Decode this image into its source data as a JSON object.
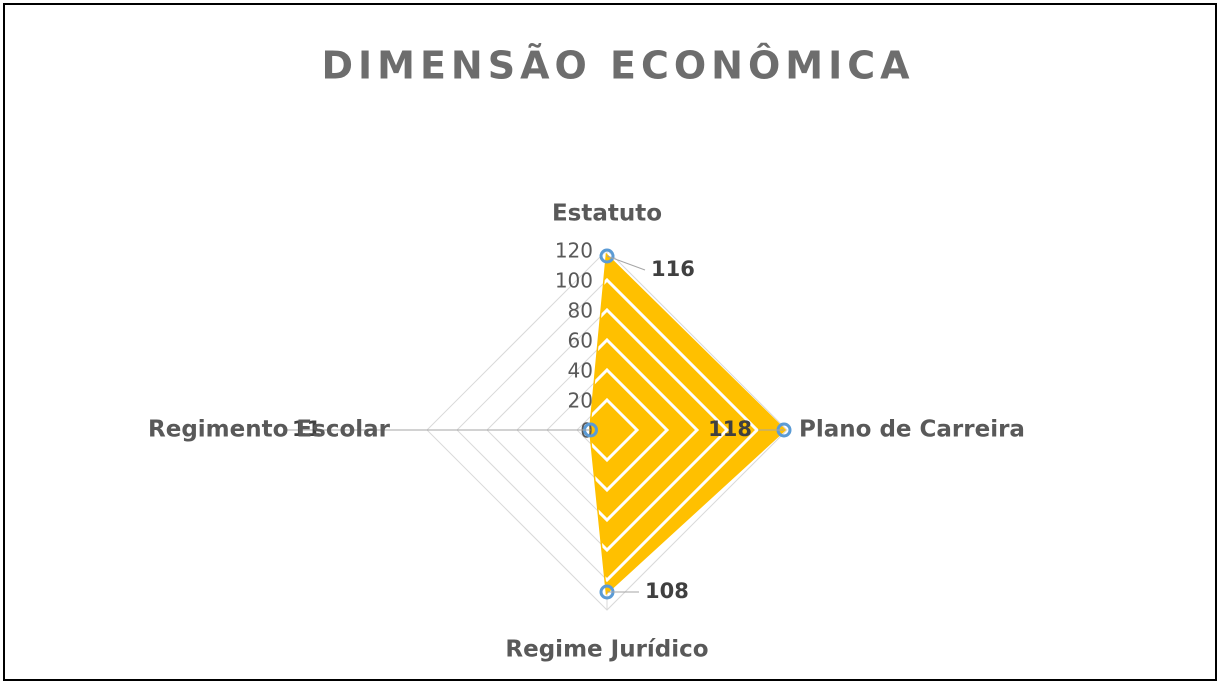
{
  "chart_data": {
    "type": "radar",
    "title": "DIMENSÃO ECONÔMICA",
    "categories": [
      "Estatuto",
      "Plano de Carreira",
      "Regime Jurídico",
      "Regimento Escolar"
    ],
    "values": [
      116,
      118,
      108,
      11
    ],
    "color": "#ffc000",
    "marker_color": "#5b9bd5",
    "ylim": [
      0,
      120
    ],
    "yticks": [
      0,
      20,
      40,
      60,
      80,
      100,
      120
    ],
    "grid": true
  }
}
